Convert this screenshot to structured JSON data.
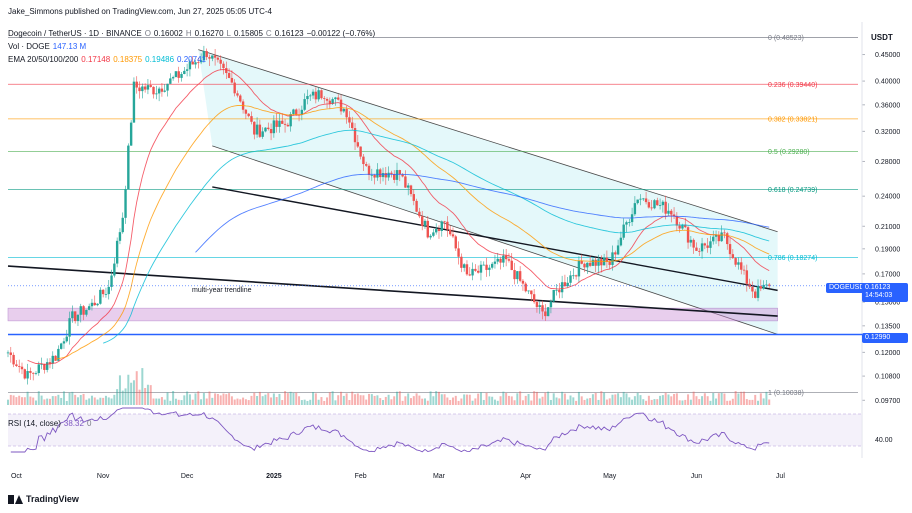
{
  "header": {
    "published_by": "Jake_Simmons published on TradingView.com, Jun 27, 2025 05:05 UTC-4",
    "symbol": "Dogecoin / TetherUS · 1D · BINANCE",
    "o_label": "O",
    "o_value": "0.16002",
    "h_label": "H",
    "h_value": "0.16270",
    "l_label": "L",
    "l_value": "0.15805",
    "c_label": "C",
    "c_value": "0.16123",
    "change": "−0.00122 (−0.76%)",
    "vol_label": "Vol · DOGE",
    "vol_value": "147.13 M",
    "ema_label": "EMA 20/50/100/200",
    "ema_values": [
      "0.17148",
      "0.18375",
      "0.19486",
      "0.20741"
    ]
  },
  "rsi_label": {
    "name": "RSI (14, close)",
    "value": "38.32",
    "extra": "0"
  },
  "brand": "TradingView",
  "axis": {
    "currency": "USDT",
    "price_ticks": [
      "0.45000",
      "0.40000",
      "0.36000",
      "0.32000",
      "0.28000",
      "0.24000",
      "0.21000",
      "0.19000",
      "0.17000",
      "0.15000",
      "0.13500",
      "0.12000",
      "0.10800",
      "0.09700"
    ],
    "rsi_tick": "40.00",
    "time_ticks": [
      "Oct",
      "Nov",
      "Dec",
      "2025",
      "Feb",
      "Mar",
      "Apr",
      "May",
      "Jun",
      "Jul"
    ]
  },
  "tags": {
    "symbol": "DOGEUSDT",
    "price": "0.16123",
    "countdown": "14:54:03",
    "support": "0.12990"
  },
  "annotation": "multi-year trendline",
  "fib_levels": [
    {
      "ratio": "0",
      "price": "(0.48523)",
      "color": "#787b86"
    },
    {
      "ratio": "0.236",
      "price": "(0.39440)",
      "color": "#f23645"
    },
    {
      "ratio": "0.382",
      "price": "(0.33821)",
      "color": "#ff9800"
    },
    {
      "ratio": "0.5",
      "price": "(0.29280)",
      "color": "#4caf50"
    },
    {
      "ratio": "0.618",
      "price": "(0.24739)",
      "color": "#089981"
    },
    {
      "ratio": "0.786",
      "price": "(0.18274)",
      "color": "#00bcd4"
    },
    {
      "ratio": "1",
      "price": "(0.10038)",
      "color": "#787b86"
    }
  ],
  "colors": {
    "up": "#26a69a",
    "down": "#ef5350",
    "channel_fill": "#b2ebf2",
    "support_zone": "#ce93d8",
    "support_line": "#2962ff",
    "rsi_line": "#7e57c2",
    "ema20": "#f23645",
    "ema50": "#ff9800",
    "ema100": "#00bcd4",
    "ema200": "#2962ff"
  },
  "chart_data": {
    "type": "candlestick",
    "symbol": "DOGEUSDT",
    "timeframe": "1D",
    "price_scale": "log",
    "ylim": [
      0.095,
      0.48
    ],
    "x_range": [
      "2024-09-28",
      "2025-07-08"
    ],
    "ohlc_anchors": [
      {
        "date": "2024-09-28",
        "close": 0.12
      },
      {
        "date": "2024-10-05",
        "close": 0.108
      },
      {
        "date": "2024-10-15",
        "close": 0.118
      },
      {
        "date": "2024-10-21",
        "close": 0.14
      },
      {
        "date": "2024-10-28",
        "close": 0.148
      },
      {
        "date": "2024-11-03",
        "close": 0.16
      },
      {
        "date": "2024-11-08",
        "close": 0.22
      },
      {
        "date": "2024-11-12",
        "close": 0.39
      },
      {
        "date": "2024-11-20",
        "close": 0.385
      },
      {
        "date": "2024-11-28",
        "close": 0.41
      },
      {
        "date": "2024-12-08",
        "close": 0.455
      },
      {
        "date": "2024-12-18",
        "close": 0.39
      },
      {
        "date": "2024-12-25",
        "close": 0.32
      },
      {
        "date": "2025-01-05",
        "close": 0.33
      },
      {
        "date": "2025-01-13",
        "close": 0.37
      },
      {
        "date": "2025-01-19",
        "close": 0.38
      },
      {
        "date": "2025-01-27",
        "close": 0.35
      },
      {
        "date": "2025-02-03",
        "close": 0.27
      },
      {
        "date": "2025-02-15",
        "close": 0.265
      },
      {
        "date": "2025-02-25",
        "close": 0.205
      },
      {
        "date": "2025-03-03",
        "close": 0.215
      },
      {
        "date": "2025-03-11",
        "close": 0.168
      },
      {
        "date": "2025-03-25",
        "close": 0.18
      },
      {
        "date": "2025-04-07",
        "close": 0.142
      },
      {
        "date": "2025-04-13",
        "close": 0.16
      },
      {
        "date": "2025-04-22",
        "close": 0.18
      },
      {
        "date": "2025-05-01",
        "close": 0.178
      },
      {
        "date": "2025-05-11",
        "close": 0.24
      },
      {
        "date": "2025-05-23",
        "close": 0.225
      },
      {
        "date": "2025-06-01",
        "close": 0.19
      },
      {
        "date": "2025-06-11",
        "close": 0.2
      },
      {
        "date": "2025-06-18",
        "close": 0.168
      },
      {
        "date": "2025-06-22",
        "close": 0.156
      },
      {
        "date": "2025-06-27",
        "close": 0.16123
      }
    ],
    "support_zone": [
      0.138,
      0.146
    ],
    "support_line": 0.1299,
    "rsi_last": 38.32
  }
}
